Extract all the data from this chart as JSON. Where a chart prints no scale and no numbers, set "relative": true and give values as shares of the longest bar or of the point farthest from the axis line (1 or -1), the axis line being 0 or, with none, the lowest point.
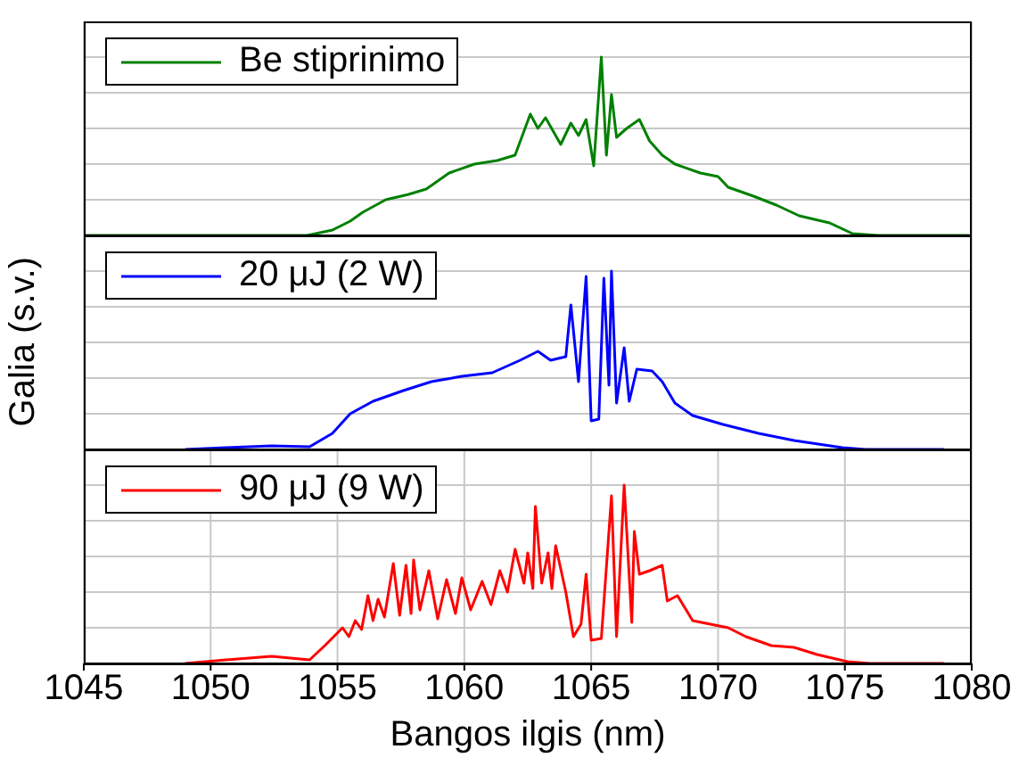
{
  "chart_data": [
    {
      "type": "line",
      "relative": true,
      "xlim": [
        1045,
        1080
      ],
      "xticks": [
        1045,
        1050,
        1055,
        1060,
        1065,
        1070,
        1075,
        1080
      ],
      "tick_labels": false,
      "grid": true,
      "legend": "top left",
      "series": [
        {
          "name": "Be stiprinimo",
          "color": "#008000",
          "x": [
            1045,
            1053.8,
            1054.8,
            1055.5,
            1056.0,
            1056.9,
            1057.8,
            1058.5,
            1059.4,
            1060.4,
            1061.3,
            1062.0,
            1062.6,
            1062.9,
            1063.2,
            1063.8,
            1064.2,
            1064.5,
            1064.8,
            1065.1,
            1065.4,
            1065.6,
            1065.8,
            1066.0,
            1066.4,
            1066.9,
            1067.3,
            1067.8,
            1068.3,
            1069.3,
            1070.0,
            1070.4,
            1071.4,
            1072.3,
            1073.2,
            1074.4,
            1075.3,
            1076.3,
            1079.9
          ],
          "values": [
            0,
            0,
            0.03,
            0.08,
            0.13,
            0.2,
            0.23,
            0.26,
            0.35,
            0.4,
            0.42,
            0.45,
            0.68,
            0.6,
            0.66,
            0.51,
            0.63,
            0.56,
            0.65,
            0.39,
            1.0,
            0.45,
            0.79,
            0.55,
            0.6,
            0.65,
            0.53,
            0.45,
            0.4,
            0.35,
            0.33,
            0.27,
            0.22,
            0.17,
            0.11,
            0.07,
            0.01,
            0,
            0
          ]
        }
      ]
    },
    {
      "type": "line",
      "relative": true,
      "xlim": [
        1045,
        1080
      ],
      "xticks": [
        1045,
        1050,
        1055,
        1060,
        1065,
        1070,
        1075,
        1080
      ],
      "tick_labels": false,
      "grid": true,
      "legend": "top left",
      "ylabel": "Galia (s.v.)",
      "series": [
        {
          "name": "20 μJ (2 W)",
          "color": "#0000ff",
          "x": [
            1049.0,
            1050.6,
            1052.4,
            1053.9,
            1054.8,
            1055.5,
            1056.4,
            1057.6,
            1058.7,
            1059.9,
            1061.1,
            1062.2,
            1062.9,
            1063.4,
            1064.0,
            1064.2,
            1064.5,
            1064.6,
            1064.8,
            1065.0,
            1065.3,
            1065.5,
            1065.7,
            1065.8,
            1066.0,
            1066.3,
            1066.5,
            1066.8,
            1067.4,
            1067.8,
            1068.3,
            1069.0,
            1070.2,
            1071.6,
            1073.0,
            1074.9,
            1075.8,
            1078.9
          ],
          "values": [
            0,
            0.01,
            0.02,
            0.015,
            0.09,
            0.2,
            0.27,
            0.33,
            0.38,
            0.41,
            0.43,
            0.5,
            0.55,
            0.5,
            0.52,
            0.81,
            0.38,
            0.58,
            0.97,
            0.16,
            0.17,
            0.96,
            0.36,
            1.0,
            0.26,
            0.57,
            0.27,
            0.45,
            0.44,
            0.38,
            0.26,
            0.19,
            0.14,
            0.09,
            0.05,
            0.01,
            0,
            0
          ]
        }
      ]
    },
    {
      "type": "line",
      "relative": true,
      "xlim": [
        1045,
        1080
      ],
      "xticks": [
        1045,
        1050,
        1055,
        1060,
        1065,
        1070,
        1075,
        1080
      ],
      "tick_labels": "x",
      "grid": true,
      "legend": "top left",
      "xlabel": "Bangos ilgis (nm)",
      "series": [
        {
          "name": "90 μJ (9 W)",
          "color": "#ff0000",
          "x": [
            1049.0,
            1050.6,
            1052.4,
            1053.9,
            1054.5,
            1055.2,
            1055.45,
            1055.7,
            1055.95,
            1056.2,
            1056.4,
            1056.6,
            1056.85,
            1057.2,
            1057.45,
            1057.7,
            1057.9,
            1058.0,
            1058.25,
            1058.6,
            1058.95,
            1059.3,
            1059.65,
            1059.9,
            1060.25,
            1060.7,
            1061.05,
            1061.4,
            1061.7,
            1062.0,
            1062.35,
            1062.5,
            1062.7,
            1062.8,
            1063.05,
            1063.3,
            1063.45,
            1063.6,
            1064.0,
            1064.3,
            1064.6,
            1064.8,
            1065.0,
            1065.4,
            1065.8,
            1066.0,
            1066.3,
            1066.6,
            1066.7,
            1066.9,
            1067.3,
            1067.8,
            1068.0,
            1068.4,
            1069.0,
            1069.7,
            1070.4,
            1071.1,
            1072.1,
            1073.0,
            1073.9,
            1075.1,
            1076.0,
            1078.9
          ],
          "values": [
            0,
            0.02,
            0.04,
            0.02,
            0.1,
            0.2,
            0.15,
            0.24,
            0.19,
            0.38,
            0.24,
            0.36,
            0.26,
            0.56,
            0.27,
            0.55,
            0.28,
            0.58,
            0.3,
            0.52,
            0.25,
            0.47,
            0.28,
            0.48,
            0.3,
            0.46,
            0.33,
            0.52,
            0.4,
            0.64,
            0.45,
            0.62,
            0.42,
            0.88,
            0.45,
            0.62,
            0.42,
            0.66,
            0.4,
            0.15,
            0.22,
            0.5,
            0.13,
            0.14,
            0.94,
            0.15,
            1.0,
            0.23,
            0.74,
            0.5,
            0.52,
            0.55,
            0.35,
            0.38,
            0.24,
            0.22,
            0.2,
            0.15,
            0.1,
            0.09,
            0.05,
            0.01,
            0,
            0
          ]
        }
      ]
    }
  ]
}
